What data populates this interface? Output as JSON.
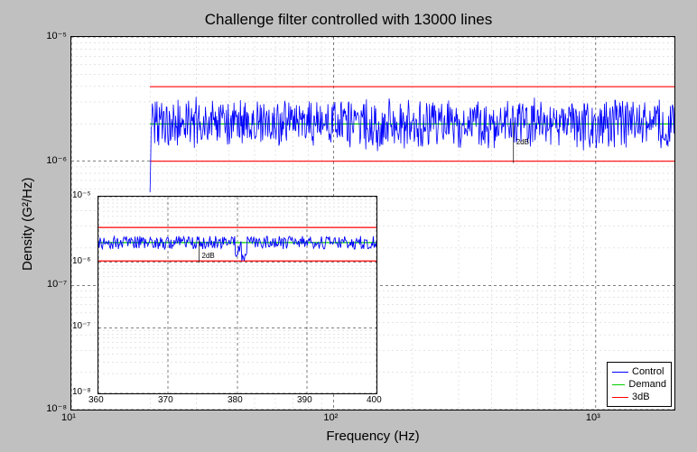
{
  "title": "Challenge filter controlled with 13000 lines",
  "xlabel": "Frequency (Hz)",
  "ylabel": "Density (G²/Hz)",
  "colors": {
    "outer_bg": "#c0c0c0",
    "plot_bg": "#ffffff",
    "control": "#0000ff",
    "demand": "#00d000",
    "band3dB": "#ff0000",
    "grid_major": "#000000",
    "grid_minor": "#c8c8c8"
  },
  "legend": {
    "items": [
      {
        "label": "Control",
        "color": "#0000ff"
      },
      {
        "label": "Demand",
        "color": "#00d000"
      },
      {
        "label": "3dB",
        "color": "#ff0000"
      }
    ]
  },
  "main": {
    "xlim_exp": [
      1,
      3.3
    ],
    "ylim_exp": [
      -8,
      -5
    ],
    "xticks": [
      {
        "exp": 1,
        "label": "10¹"
      },
      {
        "exp": 2,
        "label": "10²"
      },
      {
        "exp": 3,
        "label": "10³"
      }
    ],
    "yticks": [
      {
        "exp": -8,
        "label": "10⁻⁸"
      },
      {
        "exp": -7,
        "label": "10⁻⁷"
      },
      {
        "exp": -6,
        "label": "10⁻⁶"
      },
      {
        "exp": -5,
        "label": "10⁻⁵"
      }
    ],
    "data_x_start_exp": 1.3,
    "demand_y_exp": -5.7,
    "band3dB_upper_exp": -5.4,
    "band3dB_lower_exp": -6.0,
    "control_noise_width_exp": 0.22,
    "annotation": {
      "label": "2dB",
      "x_exp": 2.7,
      "y_exp": -5.82
    }
  },
  "inset": {
    "xlim": [
      360,
      400
    ],
    "ylim_exp": [
      -8,
      -5
    ],
    "xticks": [
      360,
      370,
      380,
      390,
      400
    ],
    "yticks": [
      {
        "exp": -8,
        "label": "10⁻⁸"
      },
      {
        "exp": -7,
        "label": "10⁻⁷"
      },
      {
        "exp": -6,
        "label": "10⁻⁶"
      },
      {
        "exp": -5,
        "label": "10⁻⁵"
      }
    ],
    "demand_y_exp": -5.7,
    "band3dB_upper_exp": -5.47,
    "band3dB_lower_exp": -5.98,
    "control_noise_width_exp": 0.1,
    "annotation": {
      "label": "2dB",
      "x": 375,
      "y_exp": -5.85
    }
  }
}
